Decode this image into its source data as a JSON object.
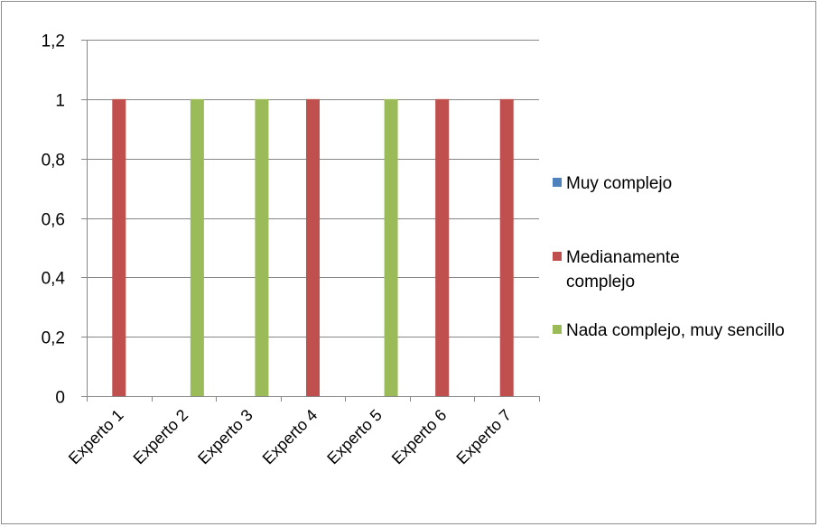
{
  "chart_data": {
    "type": "bar",
    "categories": [
      "Experto 1",
      "Experto 2",
      "Experto 3",
      "Experto 4",
      "Experto 5",
      "Experto 6",
      "Experto 7"
    ],
    "series": [
      {
        "name": "Muy complejo",
        "color": "#4f81bd",
        "values": [
          0,
          0,
          0,
          0,
          0,
          0,
          0
        ]
      },
      {
        "name": "Medianamente complejo",
        "color": "#c0504d",
        "values": [
          1,
          0,
          0,
          1,
          0,
          1,
          1
        ]
      },
      {
        "name": "Nada complejo, muy sencillo",
        "color": "#9bbb59",
        "values": [
          0,
          1,
          1,
          0,
          1,
          0,
          0
        ]
      }
    ],
    "y_ticks": [
      "0",
      "0,2",
      "0,4",
      "0,6",
      "0,8",
      "1",
      "1,2"
    ],
    "ylim": [
      0,
      1.2
    ],
    "title": "",
    "xlabel": "",
    "ylabel": "",
    "grid": true,
    "legend_position": "right"
  }
}
